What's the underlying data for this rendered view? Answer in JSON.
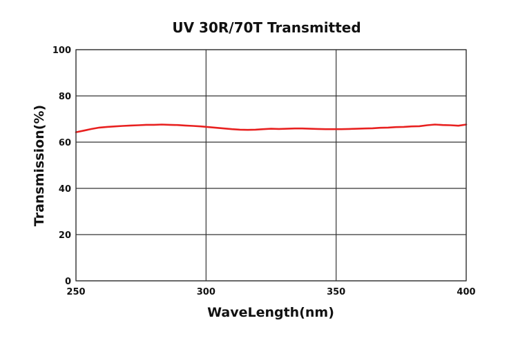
{
  "chart_data": {
    "type": "line",
    "title": "UV 30R/70T Transmitted",
    "xlabel": "WaveLength(nm)",
    "ylabel": "Transmission(%)",
    "xlim": [
      250,
      400
    ],
    "ylim": [
      0,
      100
    ],
    "x_ticks": [
      "250",
      "300",
      "350",
      "400"
    ],
    "y_ticks": [
      "0",
      "20",
      "40",
      "60",
      "80",
      "100"
    ],
    "grid": true,
    "legend": "none",
    "series": [
      {
        "color": "#e8201f",
        "x": [
          250,
          253,
          256,
          259,
          262,
          265,
          268,
          271,
          274,
          277,
          280,
          283,
          286,
          289,
          292,
          295,
          298,
          301,
          304,
          307,
          310,
          313,
          316,
          319,
          322,
          325,
          328,
          331,
          334,
          337,
          340,
          343,
          346,
          349,
          352,
          355,
          358,
          361,
          364,
          367,
          370,
          373,
          376,
          379,
          382,
          385,
          388,
          391,
          394,
          397,
          400
        ],
        "y": [
          64.3,
          65.0,
          65.7,
          66.3,
          66.6,
          66.8,
          67.0,
          67.2,
          67.3,
          67.5,
          67.5,
          67.6,
          67.5,
          67.4,
          67.2,
          67.0,
          66.8,
          66.5,
          66.2,
          65.9,
          65.6,
          65.4,
          65.3,
          65.4,
          65.6,
          65.8,
          65.7,
          65.8,
          65.9,
          65.9,
          65.8,
          65.7,
          65.6,
          65.6,
          65.6,
          65.7,
          65.8,
          65.9,
          66.0,
          66.2,
          66.3,
          66.5,
          66.6,
          66.8,
          66.9,
          67.3,
          67.6,
          67.4,
          67.3,
          67.1,
          67.6
        ]
      }
    ]
  }
}
